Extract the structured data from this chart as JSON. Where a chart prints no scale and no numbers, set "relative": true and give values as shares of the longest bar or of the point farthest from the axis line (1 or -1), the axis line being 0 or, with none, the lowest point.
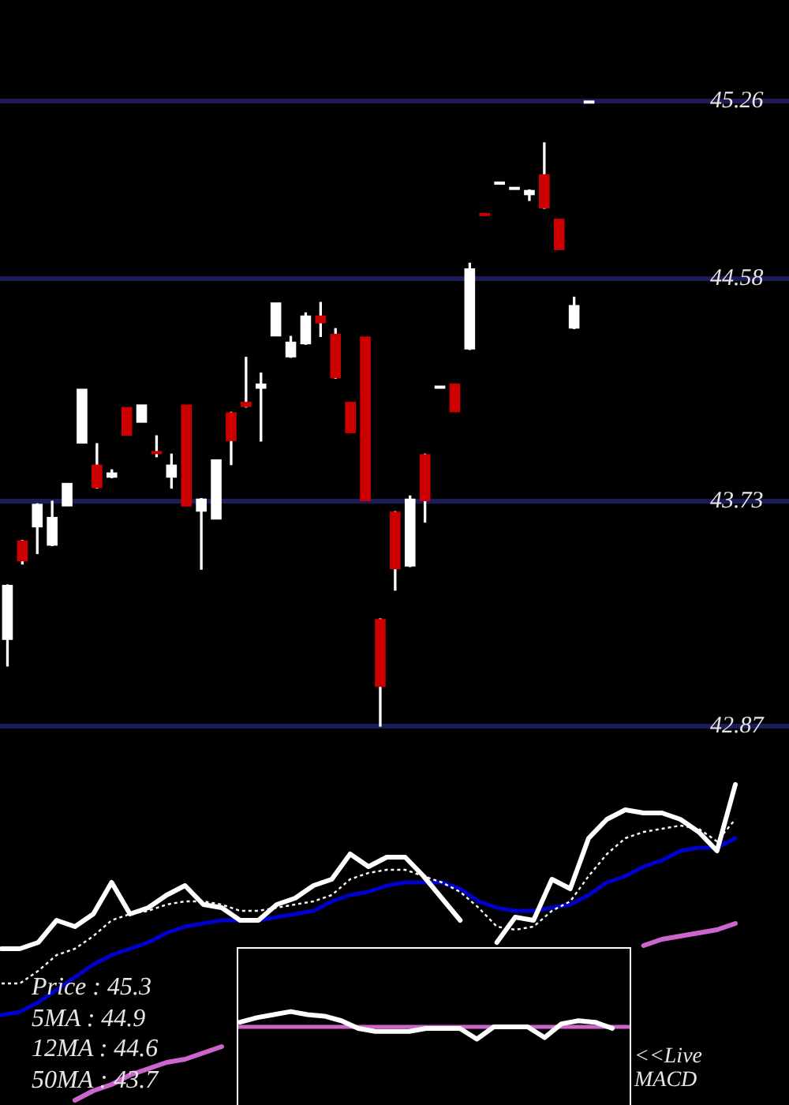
{
  "chart_data": [
    {
      "type": "candlestick",
      "categories": [
        null,
        null,
        null,
        null,
        null,
        null,
        null,
        null,
        null,
        null,
        null,
        null,
        null,
        null,
        null,
        null,
        null,
        null,
        null,
        null,
        null,
        null,
        null,
        null,
        null,
        null,
        null,
        null,
        null,
        null,
        null,
        null,
        null,
        null,
        null,
        null,
        null,
        null,
        null,
        null
      ],
      "ohlc": [
        [
          43.2,
          43.41,
          43.1,
          43.41
        ],
        [
          43.58,
          43.58,
          43.49,
          43.5
        ],
        [
          43.63,
          43.72,
          43.53,
          43.72
        ],
        [
          43.56,
          43.73,
          43.56,
          43.67
        ],
        [
          43.71,
          43.8,
          43.71,
          43.8
        ],
        [
          43.95,
          44.16,
          43.95,
          44.16
        ],
        [
          43.87,
          43.95,
          43.78,
          43.78
        ],
        [
          43.82,
          43.85,
          43.82,
          43.84
        ],
        [
          44.09,
          44.09,
          43.98,
          43.98
        ],
        [
          44.03,
          44.1,
          44.03,
          44.1
        ],
        [
          43.92,
          43.98,
          43.9,
          43.91
        ],
        [
          43.82,
          43.91,
          43.78,
          43.87
        ],
        [
          44.1,
          44.1,
          43.71,
          43.71
        ],
        [
          43.69,
          43.74,
          43.47,
          43.74
        ],
        [
          43.66,
          43.89,
          43.66,
          43.89
        ],
        [
          44.07,
          44.07,
          43.87,
          43.96
        ],
        [
          44.11,
          44.28,
          44.09,
          44.09
        ],
        [
          44.16,
          44.22,
          43.96,
          44.18
        ],
        [
          44.36,
          44.49,
          44.36,
          44.49
        ],
        [
          44.28,
          44.36,
          44.28,
          44.34
        ],
        [
          44.33,
          44.45,
          44.33,
          44.44
        ],
        [
          44.44,
          44.49,
          44.36,
          44.41
        ],
        [
          44.37,
          44.39,
          44.2,
          44.2
        ],
        [
          44.11,
          44.11,
          43.99,
          43.99
        ],
        [
          44.36,
          44.36,
          43.73,
          43.73
        ],
        [
          43.28,
          43.28,
          42.87,
          43.02
        ],
        [
          43.69,
          43.69,
          43.39,
          43.47
        ],
        [
          43.48,
          43.75,
          43.48,
          43.74
        ],
        [
          43.91,
          43.91,
          43.65,
          43.73
        ],
        [
          44.16,
          44.17,
          44.16,
          44.17
        ],
        [
          44.18,
          44.18,
          44.07,
          44.07
        ],
        [
          44.31,
          44.64,
          44.31,
          44.62
        ],
        [
          44.83,
          44.83,
          44.82,
          44.82
        ],
        [
          44.94,
          44.95,
          44.94,
          44.95
        ],
        [
          44.92,
          44.93,
          44.92,
          44.93
        ],
        [
          44.9,
          44.92,
          44.88,
          44.92
        ],
        [
          44.98,
          45.1,
          44.85,
          44.85
        ],
        [
          44.81,
          44.81,
          44.69,
          44.69
        ],
        [
          44.39,
          44.51,
          44.39,
          44.48
        ],
        [
          45.25,
          45.26,
          45.25,
          45.26
        ]
      ],
      "colors": [
        "#ffffff",
        "#cc0000",
        "#ffffff",
        "#ffffff",
        "#ffffff",
        "#ffffff",
        "#cc0000",
        "#ffffff",
        "#cc0000",
        "#ffffff",
        "#cc0000",
        "#ffffff",
        "#cc0000",
        "#ffffff",
        "#ffffff",
        "#cc0000",
        "#cc0000",
        "#ffffff",
        "#ffffff",
        "#ffffff",
        "#ffffff",
        "#cc0000",
        "#cc0000",
        "#cc0000",
        "#cc0000",
        "#cc0000",
        "#cc0000",
        "#ffffff",
        "#cc0000",
        "#ffffff",
        "#cc0000",
        "#ffffff",
        "#cc0000",
        "#ffffff",
        "#ffffff",
        "#ffffff",
        "#cc0000",
        "#cc0000",
        "#ffffff",
        "#ffffff"
      ],
      "ylim": [
        42.87,
        45.26
      ],
      "yticks": [
        42.87,
        43.73,
        44.58,
        45.26
      ],
      "grid": "y",
      "tick_labels": "y"
    },
    {
      "type": "line",
      "relative": true,
      "categories": [
        null,
        null,
        null,
        null,
        null,
        null,
        null,
        null,
        null,
        null,
        null,
        null,
        null,
        null,
        null,
        null,
        null,
        null,
        null,
        null,
        null,
        null,
        null,
        null,
        null,
        null,
        null,
        null,
        null,
        null,
        null,
        null,
        null,
        null,
        null,
        null,
        null,
        null,
        null,
        null,
        null
      ],
      "series": [
        {
          "color": "#ffffff",
          "values": [
            0.48,
            0.48,
            0.5,
            0.57,
            0.55,
            0.59,
            0.69,
            0.59,
            0.61,
            0.65,
            0.68,
            0.62,
            0.61,
            0.57,
            0.57,
            0.62,
            0.64,
            0.68,
            0.7,
            0.78,
            0.74,
            0.77,
            0.77,
            0.71,
            0.64,
            0.57,
            null,
            0.5,
            0.58,
            0.57,
            0.7,
            0.67,
            0.83,
            0.89,
            0.92,
            0.91,
            0.91,
            0.89,
            0.85,
            0.79,
            1
          ]
        },
        {
          "color": "#ffffff",
          "line_style": "dotted",
          "values": [
            0.37,
            0.37,
            0.41,
            0.46,
            0.48,
            0.52,
            0.57,
            0.59,
            0.6,
            0.62,
            0.63,
            0.63,
            0.62,
            0.6,
            0.6,
            0.61,
            0.62,
            0.63,
            0.65,
            0.7,
            0.72,
            0.73,
            0.73,
            0.71,
            0.69,
            0.66,
            0.61,
            0.55,
            0.54,
            0.55,
            0.6,
            0.63,
            0.71,
            0.78,
            0.83,
            0.85,
            0.86,
            0.87,
            0.86,
            0.82,
            0.89
          ]
        },
        {
          "color": "#0000cc",
          "values": [
            0.27,
            0.28,
            0.31,
            0.35,
            0.39,
            0.43,
            0.46,
            0.48,
            0.5,
            0.53,
            0.55,
            0.56,
            0.57,
            0.57,
            0.57,
            0.58,
            0.59,
            0.6,
            0.63,
            0.65,
            0.66,
            0.68,
            0.69,
            0.69,
            0.69,
            0.67,
            0.63,
            0.61,
            0.6,
            0.6,
            0.61,
            0.62,
            0.65,
            0.69,
            0.71,
            0.74,
            0.76,
            0.79,
            0.8,
            0.8,
            0.83
          ]
        },
        {
          "color": "#cc66cc",
          "values": [
            null,
            null,
            null,
            null,
            0,
            0.03,
            0.05,
            0.08,
            0.1,
            0.12,
            0.13,
            0.15,
            0.17,
            null,
            null,
            null,
            null,
            null,
            null,
            null,
            null,
            null,
            null,
            null,
            null,
            null,
            null,
            null,
            null,
            null,
            null,
            null,
            null,
            null,
            null,
            0.49,
            0.51,
            0.52,
            0.53,
            0.54,
            0.56
          ]
        }
      ],
      "annotations": [
        "Price : 45.3",
        "5MA : 44.9",
        "12MA : 44.6",
        "50MA : 43.7"
      ],
      "tick_labels": false
    },
    {
      "type": "line",
      "relative": true,
      "categories": [
        null,
        null,
        null,
        null,
        null,
        null,
        null,
        null,
        null,
        null,
        null,
        null,
        null,
        null,
        null,
        null,
        null,
        null,
        null,
        null,
        null,
        null,
        null
      ],
      "series": [
        {
          "color": "#ffffff",
          "values": [
            0.3,
            0.6,
            0.8,
            1,
            0.8,
            0.7,
            0.4,
            -0.1,
            -0.3,
            -0.3,
            -0.3,
            -0.1,
            -0.1,
            -0.1,
            -0.8,
            0,
            0,
            0,
            -0.7,
            0.2,
            0.4,
            0.3,
            -0.1
          ]
        }
      ],
      "ref_lines": [
        {
          "axis": "y",
          "value": 0,
          "color": "#cc66cc"
        }
      ],
      "annotations": [
        "<<Live MACD"
      ],
      "tick_labels": false
    }
  ]
}
